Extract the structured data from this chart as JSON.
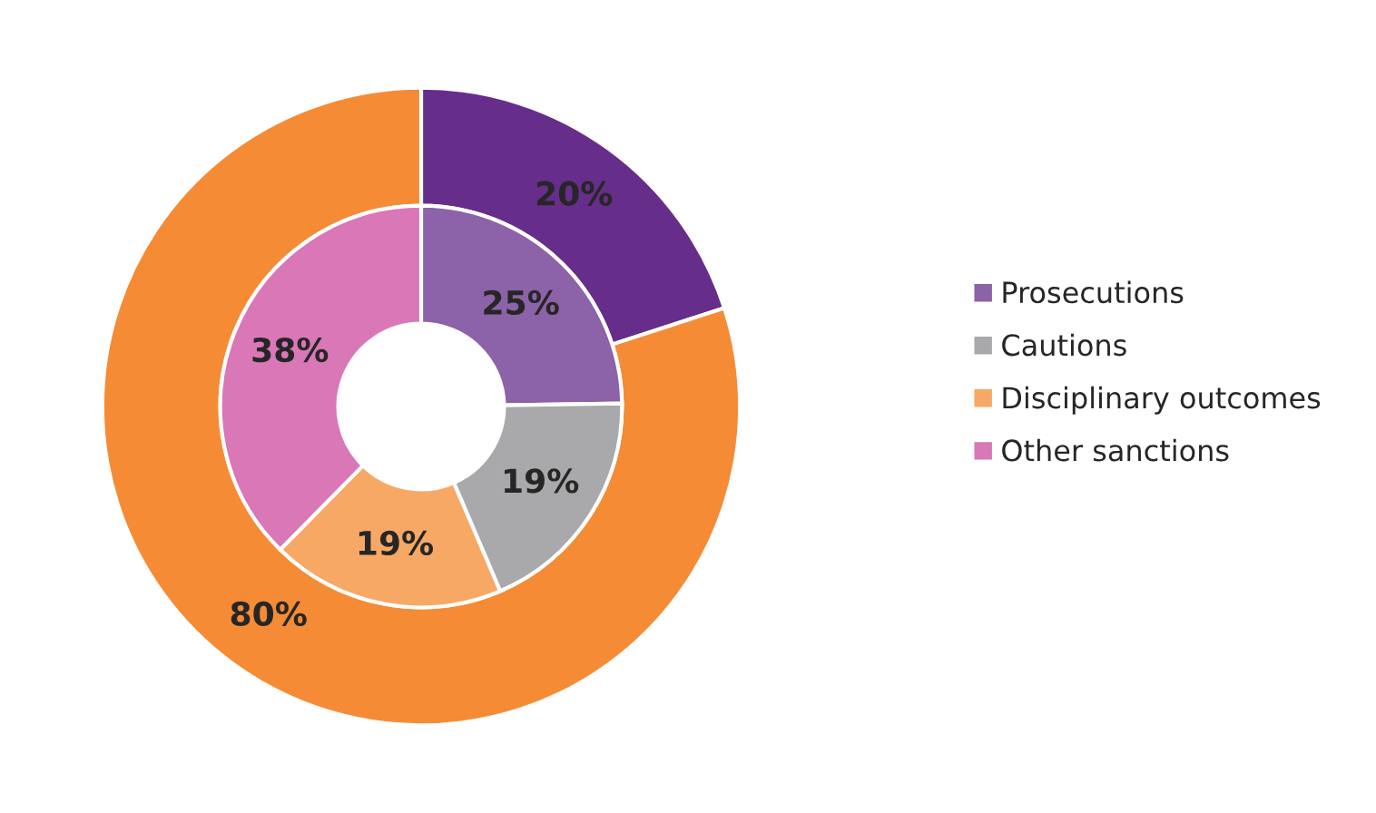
{
  "chart_data": {
    "type": "donut",
    "categories": [
      "Prosecutions",
      "Cautions",
      "Disciplinary outcomes",
      "Other sanctions"
    ],
    "series": [
      {
        "values": [
          20,
          null,
          80,
          null
        ],
        "colors": [
          "#672d8a",
          null,
          "#f58b35",
          null
        ],
        "value_labels": [
          "20%",
          null,
          "80%",
          null
        ]
      },
      {
        "values": [
          25,
          19,
          19,
          38
        ],
        "colors": [
          "#8c62a8",
          "#a9a9ab",
          "#f8a865",
          "#d977b7"
        ],
        "value_labels": [
          "25%",
          "19%",
          "19%",
          "38%"
        ]
      }
    ],
    "legend": "right"
  }
}
